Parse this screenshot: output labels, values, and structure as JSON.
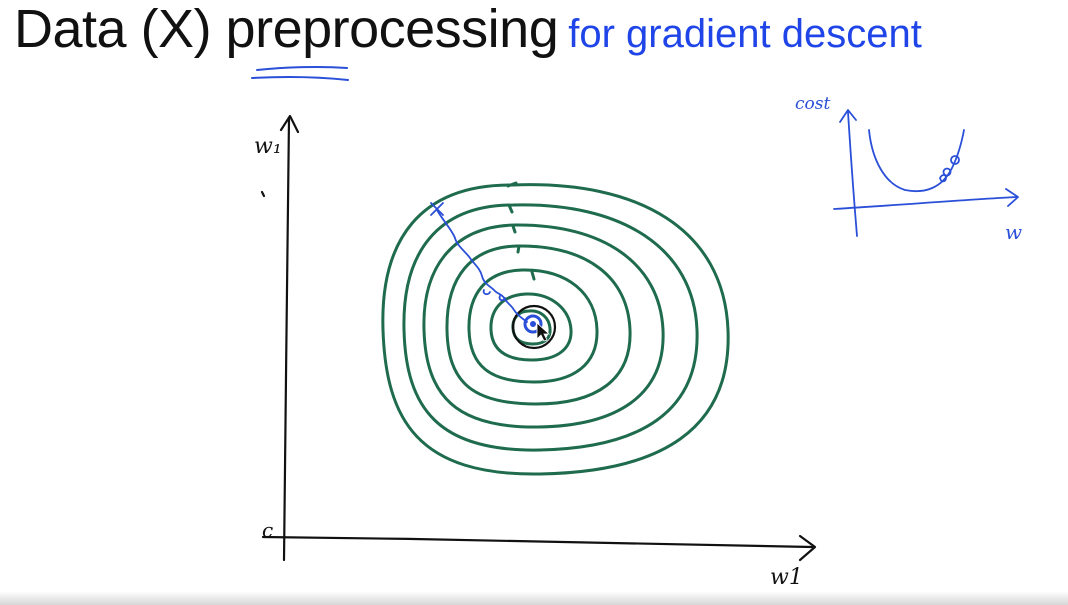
{
  "slide": {
    "title": "Data (X) preprocessing",
    "subtitle": "for gradient descent"
  },
  "main_plot": {
    "y_axis_label": "w₁",
    "x_axis_label": "w1",
    "origin_label": "c",
    "contour_color": "#1e6b4e",
    "path_color": "#2a4fd8",
    "ink_color": "#111111"
  },
  "inset_plot": {
    "y_axis_label": "cost",
    "x_axis_label": "w",
    "ink_color": "#2a4fd8"
  },
  "colors": {
    "title": "#111111",
    "subtitle": "#1f45e8",
    "underline": "#2a4fd8"
  }
}
